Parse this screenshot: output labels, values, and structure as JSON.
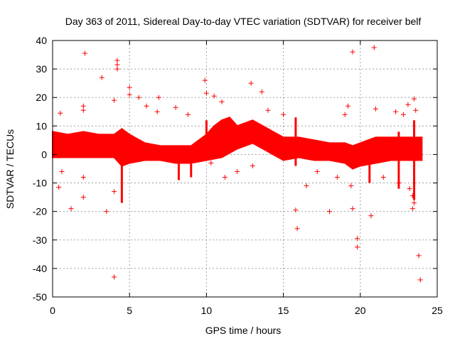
{
  "chart_data": {
    "type": "scatter",
    "title": "Day 363 of 2011, Sidereal Day-to-day VTEC variation (SDTVAR) for receiver belf",
    "xlabel": "GPS time / hours",
    "ylabel": "SDTVAR / TECUs",
    "xlim": [
      0,
      25
    ],
    "ylim": [
      -50,
      40
    ],
    "xticks": [
      0,
      5,
      10,
      15,
      20,
      25
    ],
    "yticks": [
      -50,
      -40,
      -30,
      -20,
      -10,
      0,
      10,
      20,
      30,
      40
    ],
    "grid": true,
    "marker": "+",
    "color": "#ff0000",
    "dense_band": {
      "x_range": [
        0,
        24
      ],
      "upper_envelope": [
        [
          0,
          8
        ],
        [
          1,
          7
        ],
        [
          2,
          8
        ],
        [
          3,
          7
        ],
        [
          4,
          7
        ],
        [
          4.5,
          9
        ],
        [
          5,
          7
        ],
        [
          6,
          4
        ],
        [
          7,
          3
        ],
        [
          8,
          3
        ],
        [
          9,
          3
        ],
        [
          10,
          7
        ],
        [
          10.5,
          10
        ],
        [
          11,
          12
        ],
        [
          11.5,
          13
        ],
        [
          12,
          10
        ],
        [
          13,
          12
        ],
        [
          14,
          9
        ],
        [
          15,
          6
        ],
        [
          16,
          6
        ],
        [
          17,
          5
        ],
        [
          18,
          4
        ],
        [
          19,
          4
        ],
        [
          19.5,
          3
        ],
        [
          20,
          4
        ],
        [
          21,
          6
        ],
        [
          22,
          6
        ],
        [
          23,
          6
        ],
        [
          24,
          6
        ]
      ],
      "lower_envelope": [
        [
          0,
          -1
        ],
        [
          1,
          -1
        ],
        [
          2,
          -1
        ],
        [
          3,
          -1
        ],
        [
          4,
          -1
        ],
        [
          4.5,
          -4
        ],
        [
          5,
          -3
        ],
        [
          6,
          -2
        ],
        [
          7,
          -2
        ],
        [
          8,
          -3
        ],
        [
          9,
          -3
        ],
        [
          10,
          -2
        ],
        [
          11,
          -1
        ],
        [
          12,
          2
        ],
        [
          13,
          4
        ],
        [
          14,
          1
        ],
        [
          15,
          -2
        ],
        [
          16,
          -1
        ],
        [
          17,
          -2
        ],
        [
          18,
          -2
        ],
        [
          19,
          -3
        ],
        [
          19.5,
          -5
        ],
        [
          20,
          -4
        ],
        [
          21,
          -3
        ],
        [
          22,
          -2
        ],
        [
          23,
          -2
        ],
        [
          24,
          -2
        ]
      ]
    },
    "spikes": [
      {
        "x": 4.5,
        "y_min": -17,
        "y_max": 6
      },
      {
        "x": 8.2,
        "y_min": -9,
        "y_max": 0
      },
      {
        "x": 9.0,
        "y_min": -8,
        "y_max": 0
      },
      {
        "x": 10.0,
        "y_min": -2,
        "y_max": 12
      },
      {
        "x": 15.8,
        "y_min": -4,
        "y_max": 13
      },
      {
        "x": 20.6,
        "y_min": -10,
        "y_max": 5
      },
      {
        "x": 22.5,
        "y_min": -12,
        "y_max": 8
      },
      {
        "x": 23.5,
        "y_min": -16,
        "y_max": 12
      }
    ],
    "outliers": [
      {
        "x": 2.1,
        "y": 35.5
      },
      {
        "x": 3.2,
        "y": 27
      },
      {
        "x": 4.2,
        "y": 33
      },
      {
        "x": 4.2,
        "y": 31.5
      },
      {
        "x": 4.2,
        "y": 30
      },
      {
        "x": 5.0,
        "y": 23.5
      },
      {
        "x": 5.0,
        "y": 21
      },
      {
        "x": 4.0,
        "y": 19
      },
      {
        "x": 2.0,
        "y": 17
      },
      {
        "x": 2.0,
        "y": 15.5
      },
      {
        "x": 0.5,
        "y": 14.5
      },
      {
        "x": 5.6,
        "y": 20
      },
      {
        "x": 6.1,
        "y": 17
      },
      {
        "x": 6.8,
        "y": 15
      },
      {
        "x": 6.9,
        "y": 20
      },
      {
        "x": 8.0,
        "y": 16.5
      },
      {
        "x": 8.8,
        "y": 14
      },
      {
        "x": 9.9,
        "y": 26
      },
      {
        "x": 10.0,
        "y": 21.5
      },
      {
        "x": 10.5,
        "y": 20.5
      },
      {
        "x": 11.0,
        "y": 18.5
      },
      {
        "x": 12.9,
        "y": 25
      },
      {
        "x": 13.6,
        "y": 22
      },
      {
        "x": 14.0,
        "y": 15.5
      },
      {
        "x": 15.0,
        "y": 14
      },
      {
        "x": 19.5,
        "y": 36
      },
      {
        "x": 20.9,
        "y": 37.5
      },
      {
        "x": 19.2,
        "y": 17
      },
      {
        "x": 19.0,
        "y": 14
      },
      {
        "x": 21.0,
        "y": 16
      },
      {
        "x": 22.3,
        "y": 15
      },
      {
        "x": 23.1,
        "y": 17.5
      },
      {
        "x": 23.5,
        "y": 19.5
      },
      {
        "x": 22.8,
        "y": 14
      },
      {
        "x": 23.6,
        "y": 15.5
      },
      {
        "x": 0.4,
        "y": -11.5
      },
      {
        "x": 0.6,
        "y": -6
      },
      {
        "x": 1.2,
        "y": -19
      },
      {
        "x": 2.0,
        "y": -15
      },
      {
        "x": 3.5,
        "y": -20
      },
      {
        "x": 4.0,
        "y": -43
      },
      {
        "x": 4.0,
        "y": -13
      },
      {
        "x": 2.0,
        "y": -8
      },
      {
        "x": 10.3,
        "y": -3
      },
      {
        "x": 11.2,
        "y": -8
      },
      {
        "x": 12.0,
        "y": -6
      },
      {
        "x": 13.0,
        "y": -4
      },
      {
        "x": 15.8,
        "y": -19.5
      },
      {
        "x": 15.9,
        "y": -26
      },
      {
        "x": 16.5,
        "y": -11
      },
      {
        "x": 17.2,
        "y": -6
      },
      {
        "x": 18.0,
        "y": -20
      },
      {
        "x": 18.5,
        "y": -8
      },
      {
        "x": 19.5,
        "y": -19
      },
      {
        "x": 19.8,
        "y": -29.5
      },
      {
        "x": 19.8,
        "y": -32.5
      },
      {
        "x": 19.4,
        "y": -11
      },
      {
        "x": 20.7,
        "y": -21.5
      },
      {
        "x": 21.5,
        "y": -8
      },
      {
        "x": 22.5,
        "y": -10
      },
      {
        "x": 23.2,
        "y": -12
      },
      {
        "x": 23.4,
        "y": -14.5
      },
      {
        "x": 23.5,
        "y": -17
      },
      {
        "x": 23.4,
        "y": -19
      },
      {
        "x": 23.8,
        "y": -35.5
      },
      {
        "x": 23.9,
        "y": -44
      }
    ]
  }
}
